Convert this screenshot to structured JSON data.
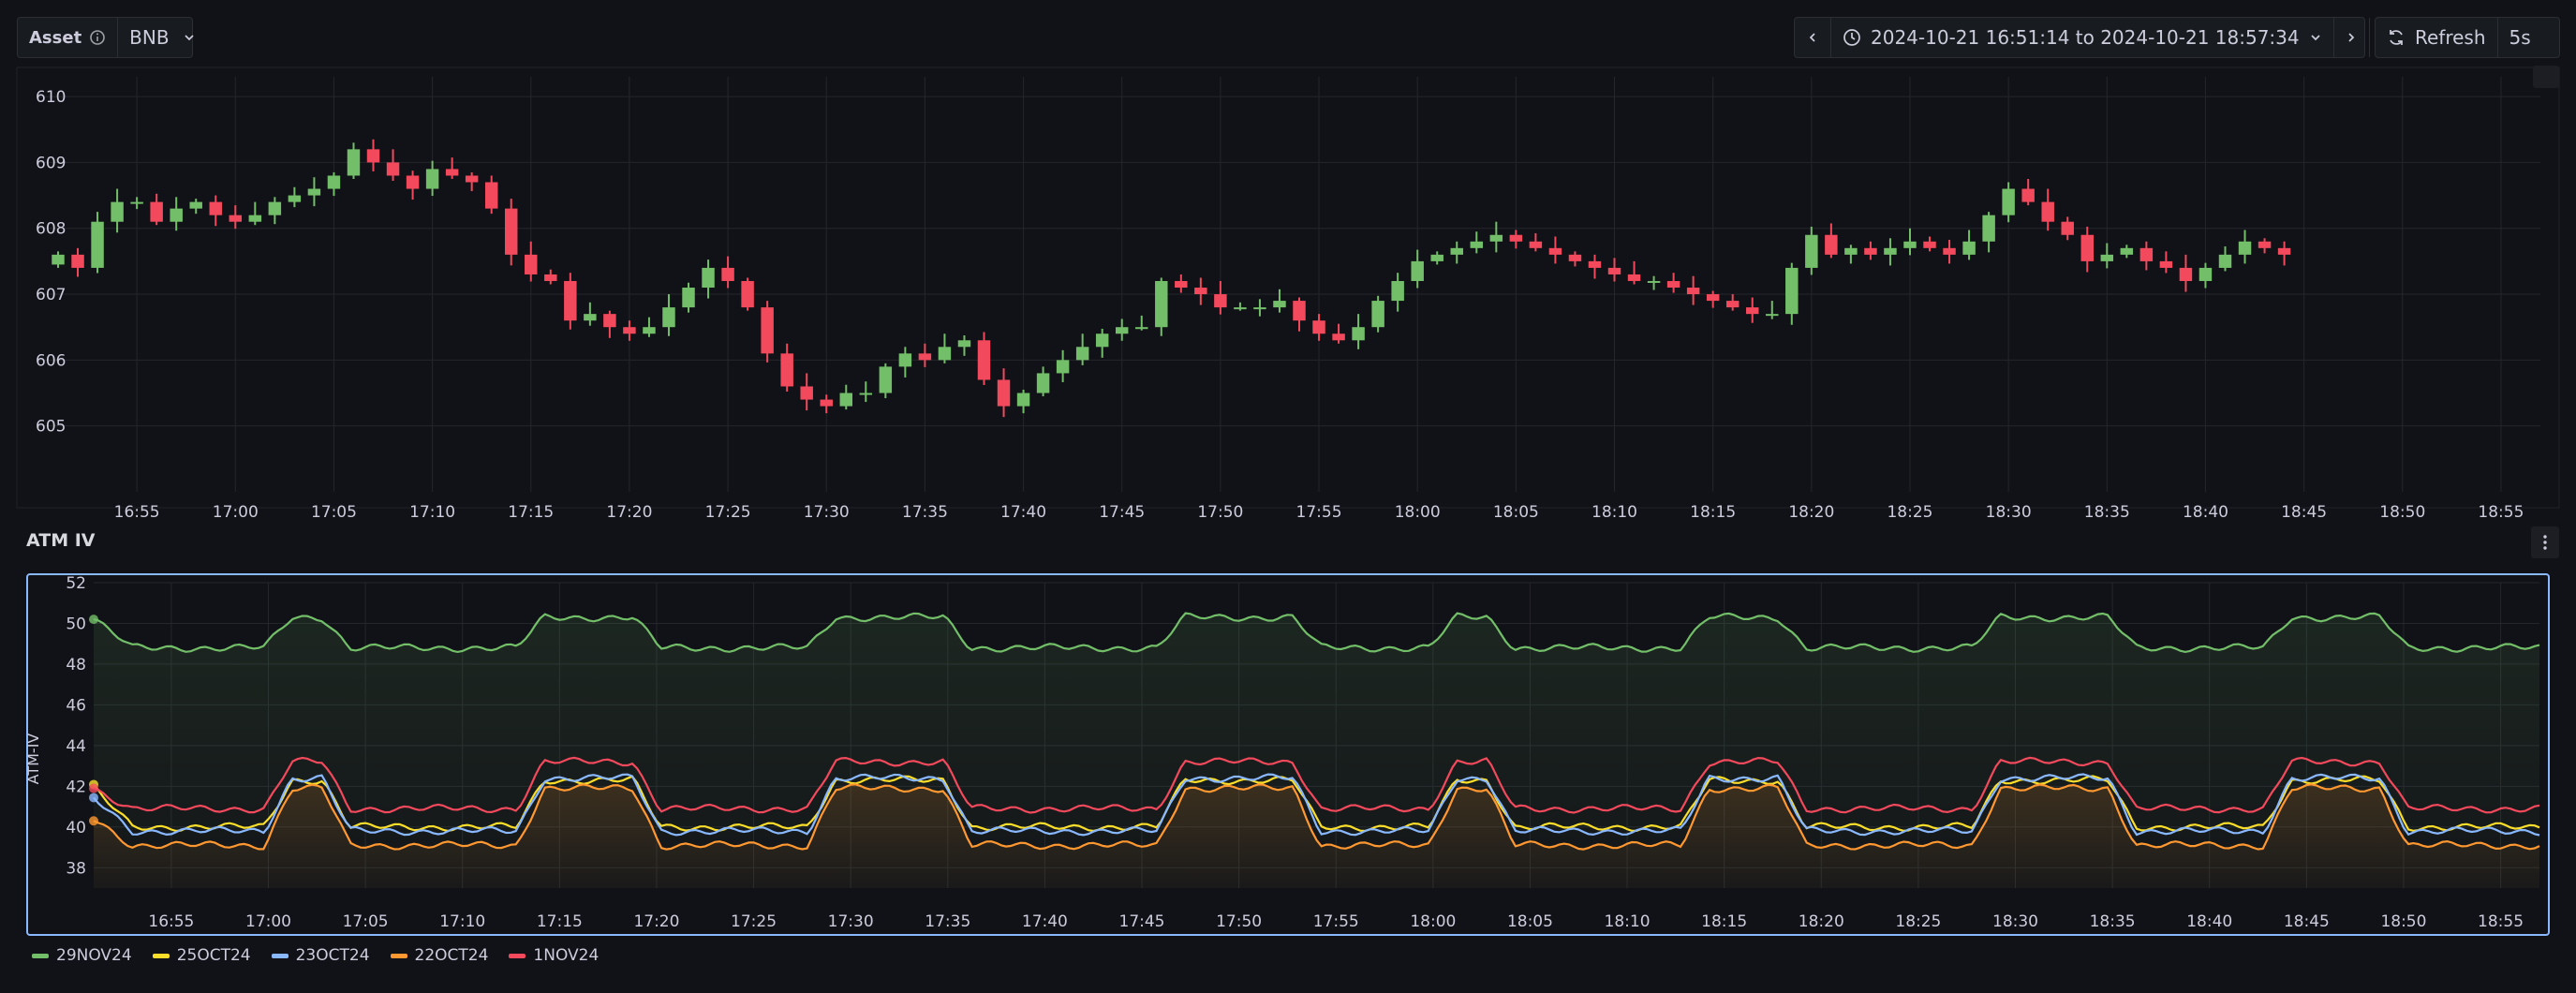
{
  "toolbar": {
    "asset_label": "Asset",
    "asset_value": "BNB",
    "time_range": "2024-10-21 16:51:14 to 2024-10-21 18:57:34",
    "refresh_label": "Refresh",
    "refresh_interval": "5s"
  },
  "panel2": {
    "title": "ATM IV",
    "ylabel": "ATM-IV"
  },
  "colors": {
    "bg": "#111217",
    "panel": "#181b1f",
    "grid": "#24262c",
    "up": "#73bf69",
    "down": "#f2495c",
    "s29NOV24": "#73bf69",
    "s25OCT24": "#fade2a",
    "s23OCT24": "#8ab8ff",
    "s22OCT24": "#ff9830",
    "s1NOV24": "#f2495c",
    "selection": "#8ab8ff"
  },
  "icons": [
    "info-icon",
    "chevron-down-icon",
    "chevron-left-icon",
    "clock-icon",
    "chevron-right-icon",
    "zoom-out-icon",
    "refresh-icon",
    "menu-icon"
  ],
  "chart_data": [
    {
      "type": "candlestick",
      "title": "",
      "x_ticks": [
        "16:55",
        "17:00",
        "17:05",
        "17:10",
        "17:15",
        "17:20",
        "17:25",
        "17:30",
        "17:35",
        "17:40",
        "17:45",
        "17:50",
        "17:55",
        "18:00",
        "18:05",
        "18:10",
        "18:15",
        "18:20",
        "18:25",
        "18:30",
        "18:35",
        "18:40",
        "18:45",
        "18:50",
        "18:55"
      ],
      "y_ticks": [
        605,
        606,
        607,
        608,
        609,
        610
      ],
      "ylim": [
        604.0,
        610.3
      ],
      "x_start": "16:51",
      "interval_minutes": 1,
      "closes": [
        607.6,
        607.4,
        608.1,
        608.4,
        608.4,
        608.1,
        608.3,
        608.4,
        608.2,
        608.1,
        608.2,
        608.4,
        608.5,
        608.6,
        608.8,
        609.2,
        609.0,
        608.8,
        608.6,
        608.9,
        608.8,
        608.7,
        608.3,
        607.6,
        607.3,
        607.2,
        606.6,
        606.7,
        606.5,
        606.4,
        606.5,
        606.8,
        607.1,
        607.4,
        607.2,
        606.8,
        606.1,
        605.6,
        605.4,
        605.3,
        605.5,
        605.5,
        605.9,
        606.1,
        606.0,
        606.2,
        606.3,
        605.7,
        605.3,
        605.5,
        605.8,
        606.0,
        606.2,
        606.4,
        606.5,
        606.5,
        607.2,
        607.1,
        607.0,
        606.8,
        606.8,
        606.8,
        606.9,
        606.6,
        606.4,
        606.3,
        606.5,
        606.9,
        607.2,
        607.5,
        607.6,
        607.7,
        607.8,
        607.9,
        607.8,
        607.7,
        607.6,
        607.5,
        607.4,
        607.3,
        607.2,
        607.2,
        607.1,
        607.0,
        606.9,
        606.8,
        606.7,
        606.7,
        607.4,
        607.9,
        607.6,
        607.7,
        607.6,
        607.7,
        607.8,
        607.7,
        607.6,
        607.8,
        608.2,
        608.6,
        608.4,
        608.1,
        607.9,
        607.5,
        607.6,
        607.7,
        607.5,
        607.4,
        607.2,
        607.4,
        607.6,
        607.8,
        607.7,
        607.6
      ],
      "up_color": "#73bf69",
      "down_color": "#f2495c"
    },
    {
      "type": "line",
      "title": "ATM IV",
      "ylabel": "ATM-IV",
      "x_ticks": [
        "16:55",
        "17:00",
        "17:05",
        "17:10",
        "17:15",
        "17:20",
        "17:25",
        "17:30",
        "17:35",
        "17:40",
        "17:45",
        "17:50",
        "17:55",
        "18:00",
        "18:05",
        "18:10",
        "18:15",
        "18:20",
        "18:25",
        "18:30",
        "18:35",
        "18:40",
        "18:45",
        "18:50",
        "18:55"
      ],
      "y_ticks": [
        38,
        40,
        42,
        44,
        46,
        48,
        50,
        52
      ],
      "ylim": [
        37,
        52
      ],
      "x_start": "16:51",
      "x_end": "18:57",
      "grid": true,
      "legend": "bottom-left",
      "series": [
        {
          "name": "29NOV24",
          "color": "#73bf69",
          "base": 48.8,
          "bump": 1.5
        },
        {
          "name": "25OCT24",
          "color": "#fade2a",
          "base": 40.0,
          "bump": 2.3
        },
        {
          "name": "23OCT24",
          "color": "#8ab8ff",
          "base": 39.8,
          "bump": 2.6
        },
        {
          "name": "22OCT24",
          "color": "#ff9830",
          "base": 39.1,
          "bump": 2.8
        },
        {
          "name": "1NOV24",
          "color": "#f2495c",
          "base": 40.9,
          "bump": 2.3
        }
      ],
      "high_iv_windows": [
        [
          "17:01",
          "17:03"
        ],
        [
          "17:14",
          "17:19"
        ],
        [
          "17:29",
          "17:35"
        ],
        [
          "17:47",
          "17:53"
        ],
        [
          "18:01",
          "18:03"
        ],
        [
          "18:14",
          "18:18"
        ],
        [
          "18:29",
          "18:35"
        ],
        [
          "18:44",
          "18:49"
        ]
      ]
    }
  ]
}
